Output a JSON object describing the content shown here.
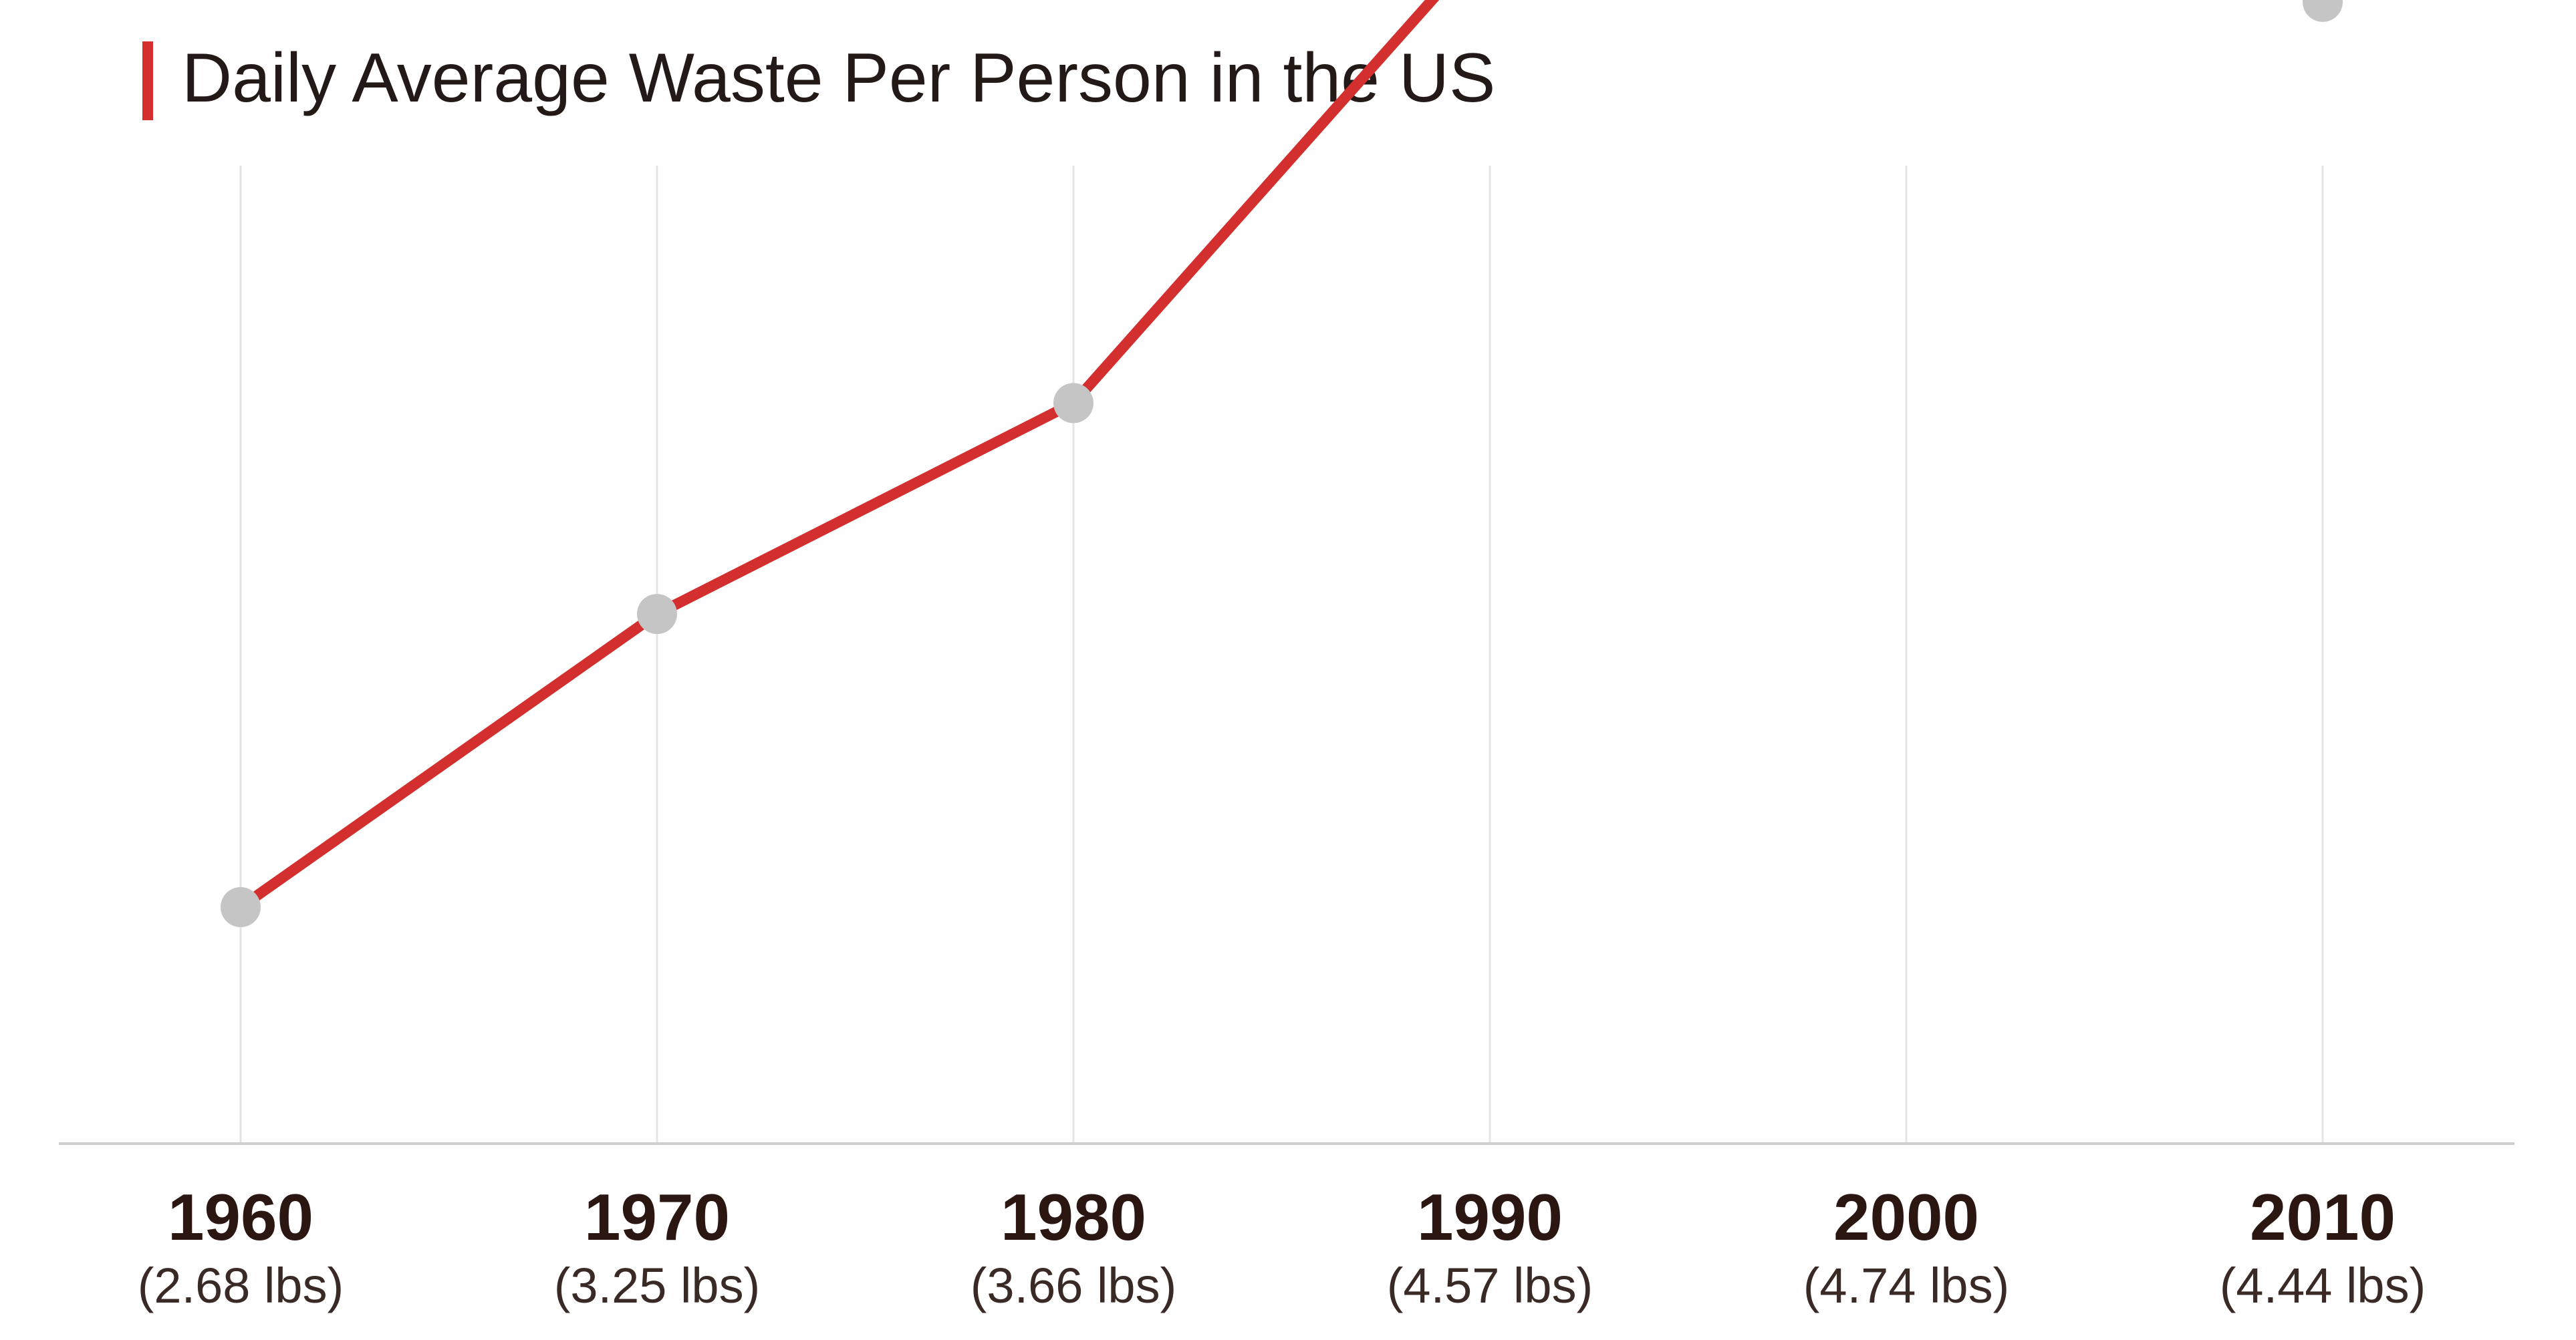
{
  "colors": {
    "accent": "#d32f2f",
    "line": "#d32f2f",
    "marker": "#c6c5c6",
    "gridline": "#e4e4e4",
    "axis": "#cfcfcf",
    "text": "#2b1612"
  },
  "chart_data": {
    "type": "line",
    "title": "Daily Average Waste Per Person in the US",
    "xlabel": "",
    "ylabel": "",
    "categories": [
      "1960",
      "1970",
      "1980",
      "1990",
      "2000",
      "2010"
    ],
    "value_labels": [
      "(2.68 lbs)",
      "(3.25 lbs)",
      "(3.66 lbs)",
      "(4.57 lbs)",
      "(4.74 lbs)",
      "(4.44 lbs)"
    ],
    "values": [
      2.68,
      3.25,
      3.66,
      4.57,
      4.74,
      4.44
    ],
    "units": "lbs",
    "grid": "vertical",
    "legend": "none"
  }
}
